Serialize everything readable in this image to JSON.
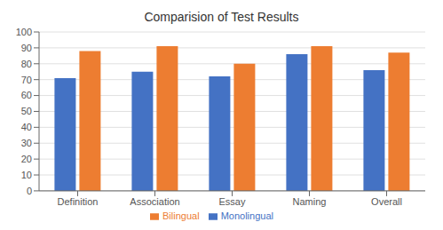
{
  "chart_data": {
    "type": "bar",
    "title": "Comparision of Test Results",
    "categories": [
      "Definition",
      "Association",
      "Essay",
      "Naming",
      "Overall"
    ],
    "series": [
      {
        "name": "Monolingual",
        "color": "#4472C4",
        "values": [
          71,
          75,
          72,
          86,
          76
        ]
      },
      {
        "name": "Bilingual",
        "color": "#ED7D31",
        "values": [
          88,
          91,
          80,
          91,
          87
        ]
      }
    ],
    "ylim": [
      0,
      100
    ],
    "yticks": [
      0,
      10,
      20,
      30,
      40,
      50,
      60,
      70,
      80,
      90,
      100
    ],
    "grid": true,
    "legend": "bottom"
  }
}
